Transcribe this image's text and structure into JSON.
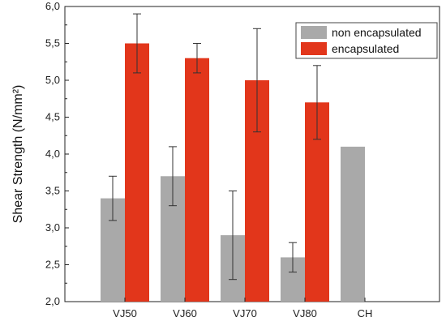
{
  "chart_data": {
    "type": "bar",
    "categories": [
      "VJ50",
      "VJ60",
      "VJ70",
      "VJ80",
      "CH"
    ],
    "xlabel": "",
    "ylabel": "Shear Strength (N/mm²)",
    "ylim": [
      2.0,
      6.0
    ],
    "yticks": [
      "2,0",
      "2,5",
      "3,0",
      "3,5",
      "4,0",
      "4,5",
      "5,0",
      "5,5",
      "6,0"
    ],
    "grid": false,
    "legend_position": "top-right",
    "series": [
      {
        "name": "non encapsulated",
        "color": "#a9a9a9",
        "values": [
          3.4,
          3.7,
          2.9,
          2.6,
          4.1
        ],
        "errors": [
          0.3,
          0.4,
          0.6,
          0.2,
          null
        ]
      },
      {
        "name": "encapsulated",
        "color": "#e2361b",
        "values": [
          5.5,
          5.3,
          5.0,
          4.7,
          null
        ],
        "errors": [
          0.4,
          0.2,
          0.7,
          0.5,
          null
        ]
      }
    ]
  }
}
